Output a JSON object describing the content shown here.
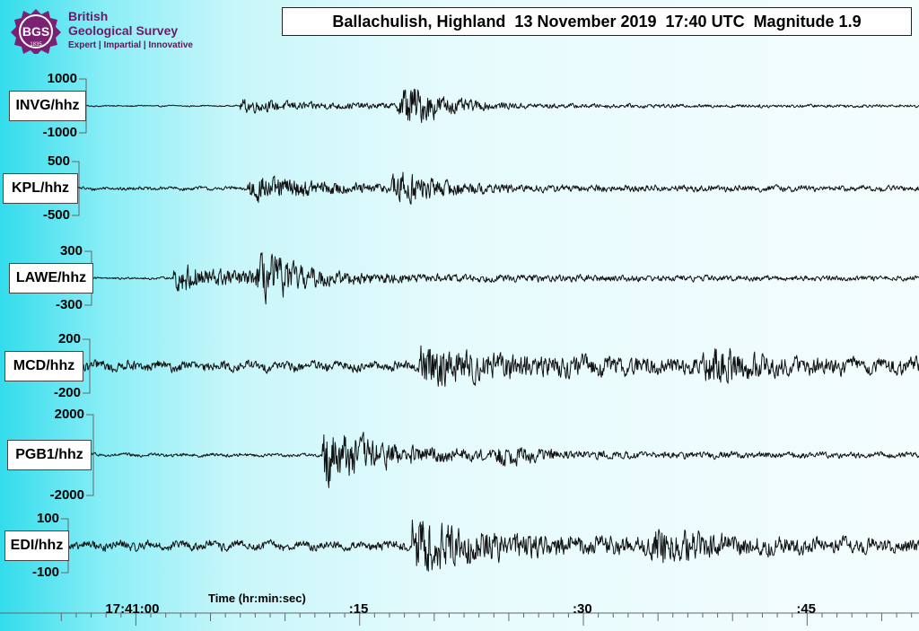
{
  "logo": {
    "badge": "BGS",
    "badge_year": "1835",
    "line1": "British",
    "line2": "Geological Survey",
    "line3": "Expert | Impartial | Innovative",
    "color": "#6b1b66"
  },
  "chart_data": {
    "type": "line",
    "title": "Ballachulish, Highland  13 November 2019  17:40 UTC  Magnitude 1.9",
    "xlabel": "Time (hr:min:sec)",
    "ylabel": "",
    "x_ticks": [
      {
        "value": 0,
        "label": "17:41:00"
      },
      {
        "value": 15,
        "label": ":15"
      },
      {
        "value": 30,
        "label": ":30"
      },
      {
        "value": 45,
        "label": ":45"
      }
    ],
    "xlim": [
      -5.5,
      52.5
    ],
    "series": [
      {
        "name": "INVG/hhz",
        "ticks": [
          "1000",
          "-1000"
        ],
        "scale_max": 1000,
        "p_onset": 7.0,
        "s_onset": 17.5,
        "p_amp": 0.22,
        "s_amp": 1.6,
        "coda_amp": 0.12,
        "noise": 0.03
      },
      {
        "name": "KPL/hhz",
        "ticks": [
          "500",
          "-500"
        ],
        "scale_max": 500,
        "p_onset": 7.5,
        "s_onset": 17.0,
        "p_amp": 0.55,
        "s_amp": 1.15,
        "coda_amp": 0.15,
        "noise": 0.08
      },
      {
        "name": "LAWE/hhz",
        "ticks": [
          "300",
          "-300"
        ],
        "scale_max": 300,
        "p_onset": 2.5,
        "s_onset": 8.0,
        "p_amp": 0.5,
        "s_amp": 1.5,
        "coda_amp": 0.22,
        "noise": 0.05
      },
      {
        "name": "MCD/hhz",
        "ticks": [
          "200",
          "-200"
        ],
        "scale_max": 200,
        "p_onset": 19.0,
        "s_onset": 38.0,
        "p_amp": 0.7,
        "s_amp": 1.05,
        "coda_amp": 0.3,
        "noise": 0.22
      },
      {
        "name": "PGB1/hhz",
        "ticks": [
          "2000",
          "-2000"
        ],
        "scale_max": 2000,
        "p_onset": 12.5,
        "s_onset": 24.0,
        "p_amp": 1.0,
        "s_amp": 0.35,
        "coda_amp": 0.1,
        "noise": 0.05
      },
      {
        "name": "EDI/hhz",
        "ticks": [
          "100",
          "-100"
        ],
        "scale_max": 100,
        "p_onset": 18.5,
        "s_onset": 34.5,
        "p_amp": 1.05,
        "s_amp": 1.05,
        "coda_amp": 0.35,
        "noise": 0.2
      }
    ],
    "legend": "none",
    "grid": false
  }
}
